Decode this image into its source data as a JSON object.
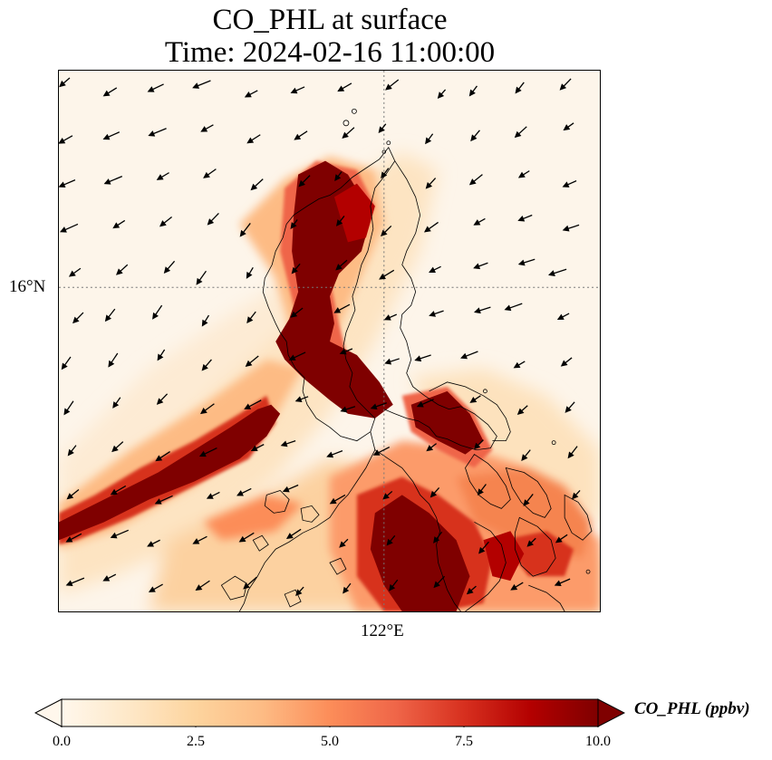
{
  "title": {
    "line1": "CO_PHL at surface",
    "line2": "Time: 2024-02-16 11:00:00"
  },
  "map": {
    "variable": "CO_PHL",
    "level": "surface",
    "gridlines": "dotted",
    "latitude_label": "16°N",
    "longitude_label": "122°E",
    "overlay": "wind vectors"
  },
  "colorbar": {
    "label": "CO_PHL (ppbv)",
    "ticks": [
      "0.0",
      "2.5",
      "5.0",
      "7.5",
      "10.0"
    ],
    "min": 0,
    "max": 10,
    "extend": "both",
    "colormap": "OrRd",
    "colors": [
      "#fff7ec",
      "#fee8c8",
      "#fdd49e",
      "#fdbb84",
      "#fc8d59",
      "#ef6548",
      "#d7301f",
      "#b30000",
      "#7f0000"
    ]
  }
}
